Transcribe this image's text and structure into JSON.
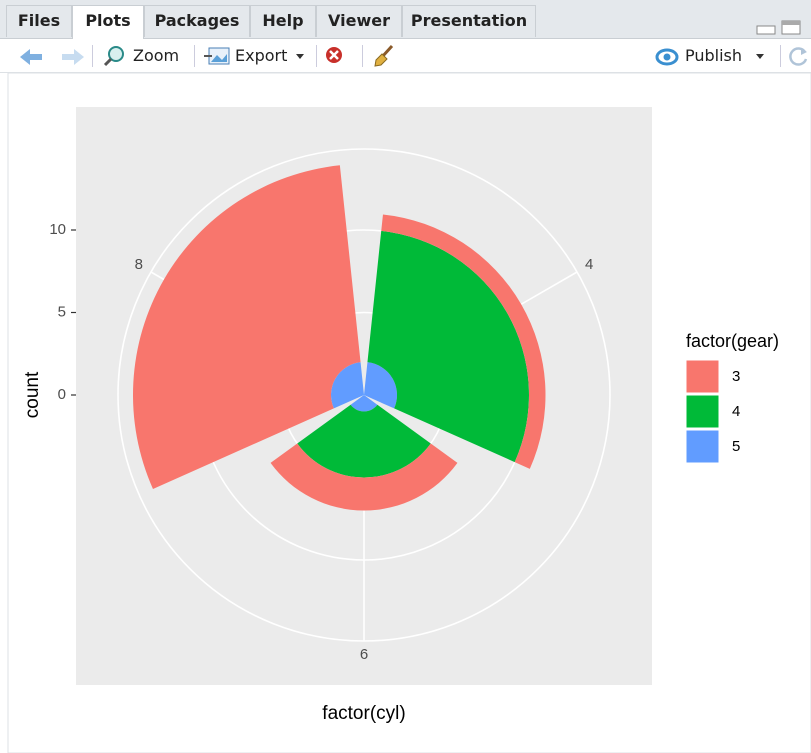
{
  "tabs": [
    "Files",
    "Plots",
    "Packages",
    "Help",
    "Viewer",
    "Presentation"
  ],
  "toolbar": {
    "zoom": "Zoom",
    "export": "Export",
    "publish": "Publish"
  },
  "chart_data": {
    "type": "coxcomb",
    "x_label": "factor(cyl)",
    "y_label": "count",
    "categories": [
      "4",
      "6",
      "8"
    ],
    "legend_title": "factor(gear)",
    "series": [
      {
        "name": "3",
        "color": "#F8766D",
        "values": [
          1,
          2,
          12
        ]
      },
      {
        "name": "4",
        "color": "#00BA38",
        "values": [
          8,
          4,
          0
        ]
      },
      {
        "name": "5",
        "color": "#619CFF",
        "values": [
          2,
          1,
          2
        ]
      }
    ],
    "ylim": [
      0,
      14
    ],
    "yticks": [
      0,
      5,
      10
    ],
    "grid": true
  }
}
